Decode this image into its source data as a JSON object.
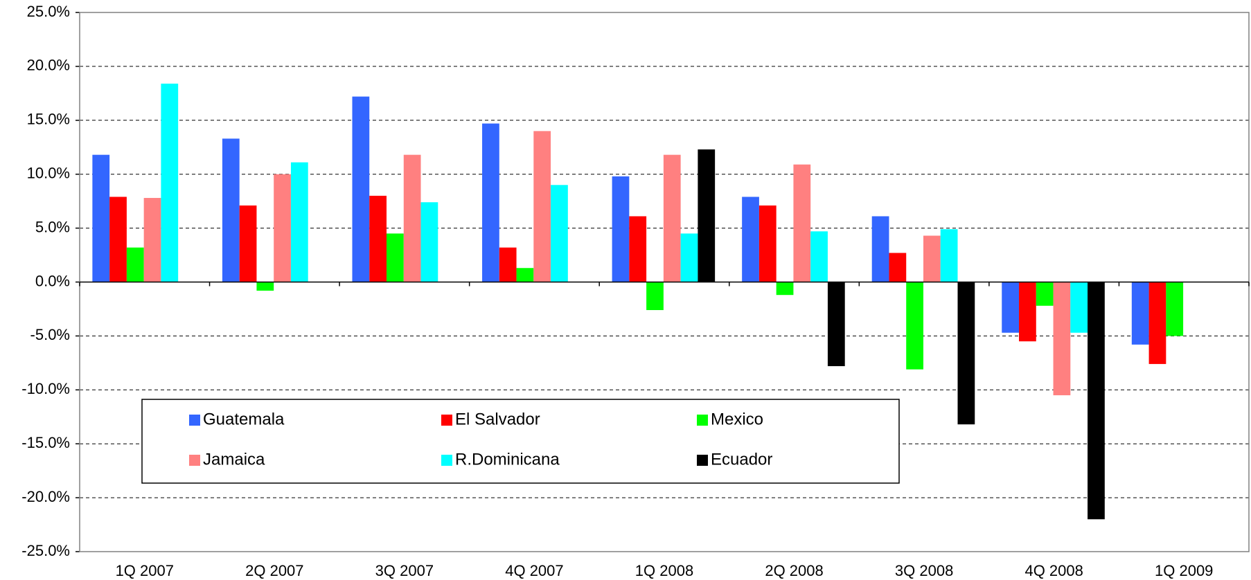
{
  "chart_data": {
    "type": "bar",
    "categories": [
      "1Q 2007",
      "2Q 2007",
      "3Q 2007",
      "4Q 2007",
      "1Q 2008",
      "2Q 2008",
      "3Q 2008",
      "4Q 2008",
      "1Q 2009"
    ],
    "series": [
      {
        "name": "Guatemala",
        "color": "#3366ff",
        "values": [
          11.8,
          13.3,
          17.2,
          14.7,
          9.8,
          7.9,
          6.1,
          -4.7,
          -5.8
        ]
      },
      {
        "name": "El Salvador",
        "color": "#ff0000",
        "values": [
          7.9,
          7.1,
          8.0,
          3.2,
          6.1,
          7.1,
          2.7,
          -5.5,
          -7.6
        ]
      },
      {
        "name": "Mexico",
        "color": "#00ff00",
        "values": [
          3.2,
          -0.8,
          4.5,
          1.3,
          -2.6,
          -1.2,
          -8.1,
          -2.2,
          -5.0
        ]
      },
      {
        "name": "Jamaica",
        "color": "#ff8080",
        "values": [
          7.8,
          10.0,
          11.8,
          14.0,
          11.8,
          10.9,
          4.3,
          -10.5,
          null
        ]
      },
      {
        "name": "R.Dominicana",
        "color": "#00ffff",
        "values": [
          18.4,
          11.1,
          7.4,
          9.0,
          4.5,
          4.7,
          4.9,
          -4.7,
          null
        ]
      },
      {
        "name": "Ecuador",
        "color": "#000000",
        "values": [
          null,
          null,
          null,
          null,
          12.3,
          -7.8,
          -13.2,
          -22.0,
          null
        ]
      }
    ],
    "ylim": [
      -25,
      25
    ],
    "yticks": [
      {
        "value": -25,
        "label": "-25.0%"
      },
      {
        "value": -20,
        "label": "-20.0%"
      },
      {
        "value": -15,
        "label": "-15.0%"
      },
      {
        "value": -10,
        "label": "-10.0%"
      },
      {
        "value": -5,
        "label": "-5.0%"
      },
      {
        "value": 0,
        "label": "0.0%"
      },
      {
        "value": 5,
        "label": "5.0%"
      },
      {
        "value": 10,
        "label": "10.0%"
      },
      {
        "value": 15,
        "label": "15.0%"
      },
      {
        "value": 20,
        "label": "20.0%"
      },
      {
        "value": 25,
        "label": "25.0%"
      }
    ],
    "grid": true,
    "legend": "lower left"
  }
}
